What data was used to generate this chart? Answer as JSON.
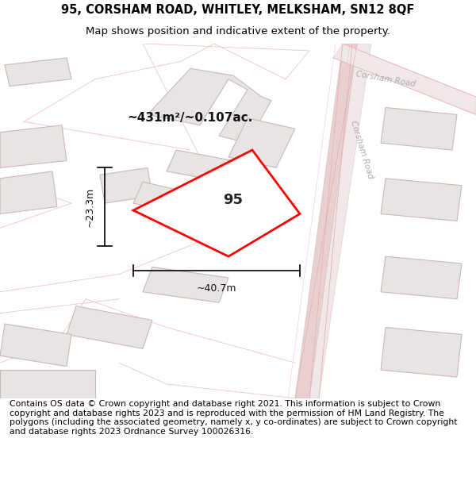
{
  "title_line1": "95, CORSHAM ROAD, WHITLEY, MELKSHAM, SN12 8QF",
  "title_line2": "Map shows position and indicative extent of the property.",
  "footer_text": "Contains OS data © Crown copyright and database right 2021. This information is subject to Crown copyright and database rights 2023 and is reproduced with the permission of HM Land Registry. The polygons (including the associated geometry, namely x, y co-ordinates) are subject to Crown copyright and database rights 2023 Ordnance Survey 100026316.",
  "area_text": "~431m²/~0.107ac.",
  "property_label": "95",
  "dim_horizontal": "~40.7m",
  "dim_vertical": "~23.3m",
  "bg_color": "#ffffff",
  "map_bg": "#ffffff",
  "property_fill": "#ffffff",
  "property_edge": "#ff0000",
  "road_color_fill": "#e8d8d8",
  "road_color_edge": "#e0b8b8",
  "building_fill": "#e8e4e4",
  "building_edge": "#c8b8b8",
  "road_line_color": "#f0c8c8",
  "title_fontsize": 10.5,
  "subtitle_fontsize": 9.5,
  "footer_fontsize": 7.8,
  "road_label_color": "#aaaaaa",
  "road_label_size": 7.5,
  "area_fontsize": 11,
  "dim_fontsize": 9,
  "label_fontsize": 13
}
